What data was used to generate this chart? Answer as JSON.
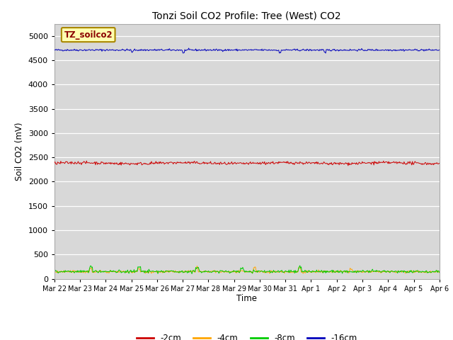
{
  "title": "Tonzi Soil CO2 Profile: Tree (West) CO2",
  "ylabel": "Soil CO2 (mV)",
  "xlabel": "Time",
  "watermark_text": "TZ_soilco2",
  "background_color": "#e0e0e0",
  "plot_bg_color": "#d8d8d8",
  "yticks": [
    0,
    500,
    1000,
    1500,
    2000,
    2500,
    3000,
    3500,
    4000,
    4500,
    5000
  ],
  "ylim": [
    0,
    5250
  ],
  "xlim_days": 15,
  "series": {
    "-2cm": {
      "color": "#cc0000",
      "mean": 2380,
      "noise": 15,
      "label": "-2cm"
    },
    "-4cm": {
      "color": "#ffa500",
      "mean": 145,
      "noise": 18,
      "label": "-4cm"
    },
    "-8cm": {
      "color": "#00cc00",
      "mean": 150,
      "noise": 22,
      "label": "-8cm"
    },
    "-16cm": {
      "color": "#0000bb",
      "mean": 4710,
      "noise": 10,
      "label": "-16cm"
    }
  },
  "n_points": 600,
  "xtick_labels": [
    "Mar 22",
    "Mar 23",
    "Mar 24",
    "Mar 25",
    "Mar 26",
    "Mar 27",
    "Mar 28",
    "Mar 29",
    "Mar 30",
    "Mar 31",
    "Apr 1",
    "Apr 2",
    "Apr 3",
    "Apr 4",
    "Apr 5",
    "Apr 6"
  ],
  "legend_colors": [
    "#cc0000",
    "#ffa500",
    "#00cc00",
    "#0000bb"
  ],
  "legend_labels": [
    "-2cm",
    "-4cm",
    "-8cm",
    "-16cm"
  ],
  "figsize": [
    6.4,
    4.8
  ],
  "dpi": 100
}
